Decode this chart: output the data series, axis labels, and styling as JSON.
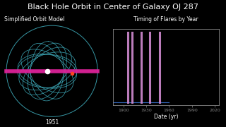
{
  "title": "Black Hole Orbit in Center of Galaxy OJ 287",
  "left_label": "Simplified Orbit Model",
  "right_label": "Timing of Flares by Year",
  "year_label": "1951",
  "xlabel": "Date (yr)",
  "background_color": "#000000",
  "text_color": "#ffffff",
  "orbit_color": "#44bbcc",
  "disk_color": "#dd2299",
  "flare_years": [
    1906,
    1911,
    1923,
    1934,
    1947
  ],
  "bar_color": "#cc88cc",
  "axis_color": "#888888",
  "xmin": 1886,
  "xmax": 2026,
  "xticks": [
    1900,
    1930,
    1960,
    1990,
    2020
  ],
  "title_fontsize": 8.0,
  "label_fontsize": 5.5,
  "tick_fontsize": 4.5,
  "year_fontsize": 5.5
}
